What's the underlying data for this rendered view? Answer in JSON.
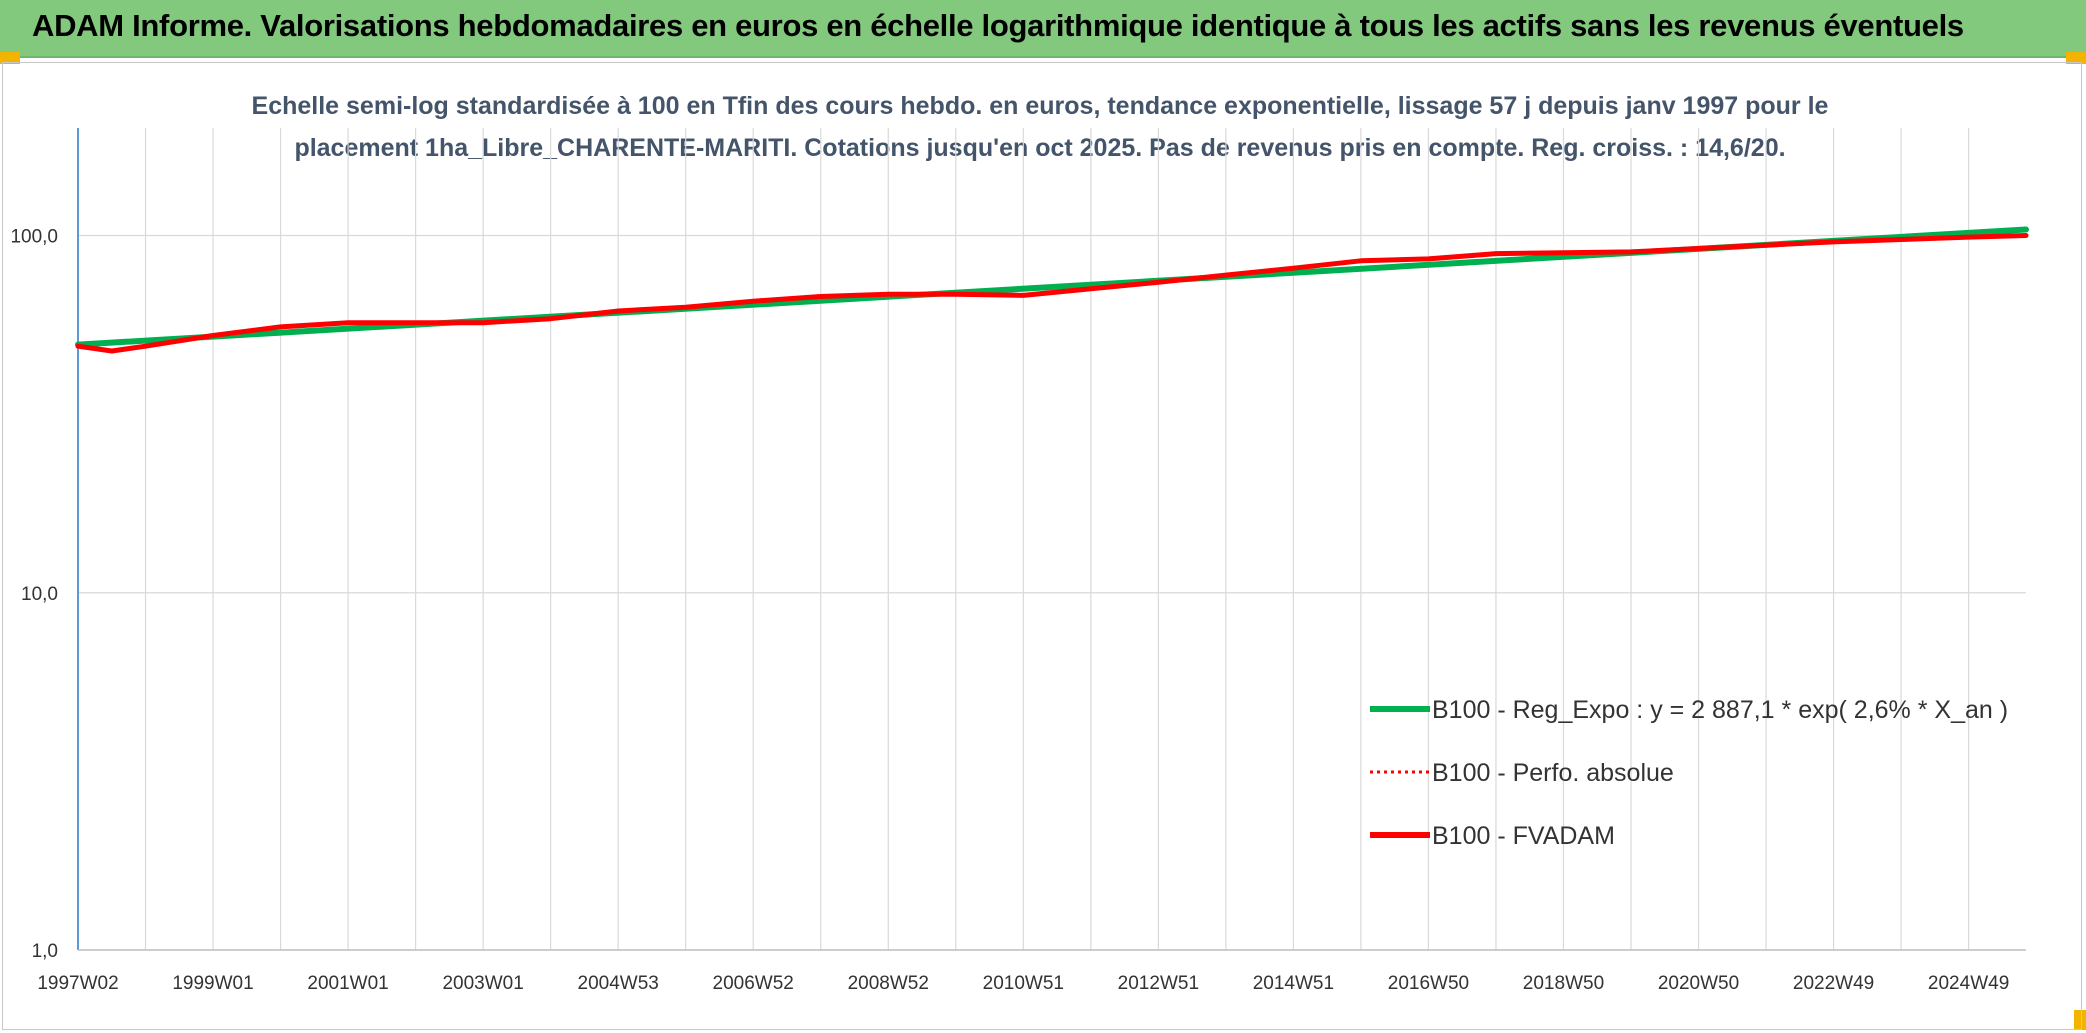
{
  "header": {
    "title": "ADAM Informe. Valorisations hebdomadaires en euros en échelle logarithmique identique à tous les actifs sans les revenus éventuels"
  },
  "chart_data": {
    "type": "line",
    "title_line1": "Echelle semi-log standardisée à 100 en Tfin des cours hebdo. en euros, tendance exponentielle, lissage 57 j depuis janv 1997 pour le",
    "title_line2": "placement 1ha_Libre_CHARENTE-MARITI. Cotations jusqu'en oct 2025. Pas de revenus pris en compte. Reg. croiss. : 14,6/20.",
    "y_scale": "log",
    "ylim": [
      1,
      200
    ],
    "y_ticks": [
      {
        "value": 1,
        "label": "1,0"
      },
      {
        "value": 10,
        "label": "10,0"
      },
      {
        "value": 100,
        "label": "100,0"
      }
    ],
    "xlim": [
      1997.0,
      2025.85
    ],
    "x_ticks": [
      {
        "value": 1997.0,
        "label": "1997W02"
      },
      {
        "value": 1999.0,
        "label": "1999W01"
      },
      {
        "value": 2001.0,
        "label": "2001W01"
      },
      {
        "value": 2003.0,
        "label": "2003W01"
      },
      {
        "value": 2005.0,
        "label": "2004W53"
      },
      {
        "value": 2007.0,
        "label": "2006W52"
      },
      {
        "value": 2009.0,
        "label": "2008W52"
      },
      {
        "value": 2011.0,
        "label": "2010W51"
      },
      {
        "value": 2013.0,
        "label": "2012W51"
      },
      {
        "value": 2015.0,
        "label": "2014W51"
      },
      {
        "value": 2017.0,
        "label": "2016W50"
      },
      {
        "value": 2019.0,
        "label": "2018W50"
      },
      {
        "value": 2021.0,
        "label": "2020W50"
      },
      {
        "value": 2023.0,
        "label": "2022W49"
      },
      {
        "value": 2025.0,
        "label": "2024W49"
      }
    ],
    "grid": true,
    "legend_position": "bottom-right",
    "series": [
      {
        "name": "B100 - Reg_Expo : y = 2 887,1 * exp( 2,6% *  X_an )",
        "color": "#00b050",
        "style": "solid",
        "x": [
          1997.0,
          2025.85
        ],
        "values": [
          49.5,
          104.0
        ]
      },
      {
        "name": "B100 - Perfo. absolue",
        "color": "#ff0000",
        "style": "dotted",
        "x": [
          1997.0,
          1997.5,
          1998.0,
          1999.0,
          2000.0,
          2001.0,
          2002.0,
          2003.0,
          2004.0,
          2005.0,
          2006.0,
          2007.0,
          2008.0,
          2009.0,
          2010.0,
          2011.0,
          2012.0,
          2013.0,
          2014.0,
          2015.0,
          2016.0,
          2017.0,
          2018.0,
          2019.0,
          2020.0,
          2021.0,
          2022.0,
          2023.0,
          2024.0,
          2025.0,
          2025.85
        ],
        "values": [
          49,
          47.5,
          49,
          52.5,
          55.5,
          57,
          57,
          57,
          58.5,
          61.5,
          63,
          65.5,
          67.5,
          68.5,
          68.5,
          68,
          71,
          74,
          77.5,
          81,
          85,
          86,
          89,
          89.5,
          90,
          92,
          94,
          96,
          97.5,
          99,
          100
        ]
      },
      {
        "name": "B100 - FVADAM",
        "color": "#ff0000",
        "style": "solid",
        "x": [
          1997.0,
          1997.5,
          1998.0,
          1999.0,
          2000.0,
          2001.0,
          2002.0,
          2003.0,
          2004.0,
          2005.0,
          2006.0,
          2007.0,
          2008.0,
          2009.0,
          2010.0,
          2011.0,
          2012.0,
          2013.0,
          2014.0,
          2015.0,
          2016.0,
          2017.0,
          2018.0,
          2019.0,
          2020.0,
          2021.0,
          2022.0,
          2023.0,
          2024.0,
          2025.0,
          2025.85
        ],
        "values": [
          49,
          47.5,
          49,
          52.5,
          55.5,
          57,
          57,
          57,
          58.5,
          61.5,
          63,
          65.5,
          67.5,
          68.5,
          68.5,
          68,
          71,
          74,
          77.5,
          81,
          85,
          86,
          89,
          89.5,
          90,
          92,
          94,
          96,
          97.5,
          99,
          100
        ]
      }
    ]
  }
}
